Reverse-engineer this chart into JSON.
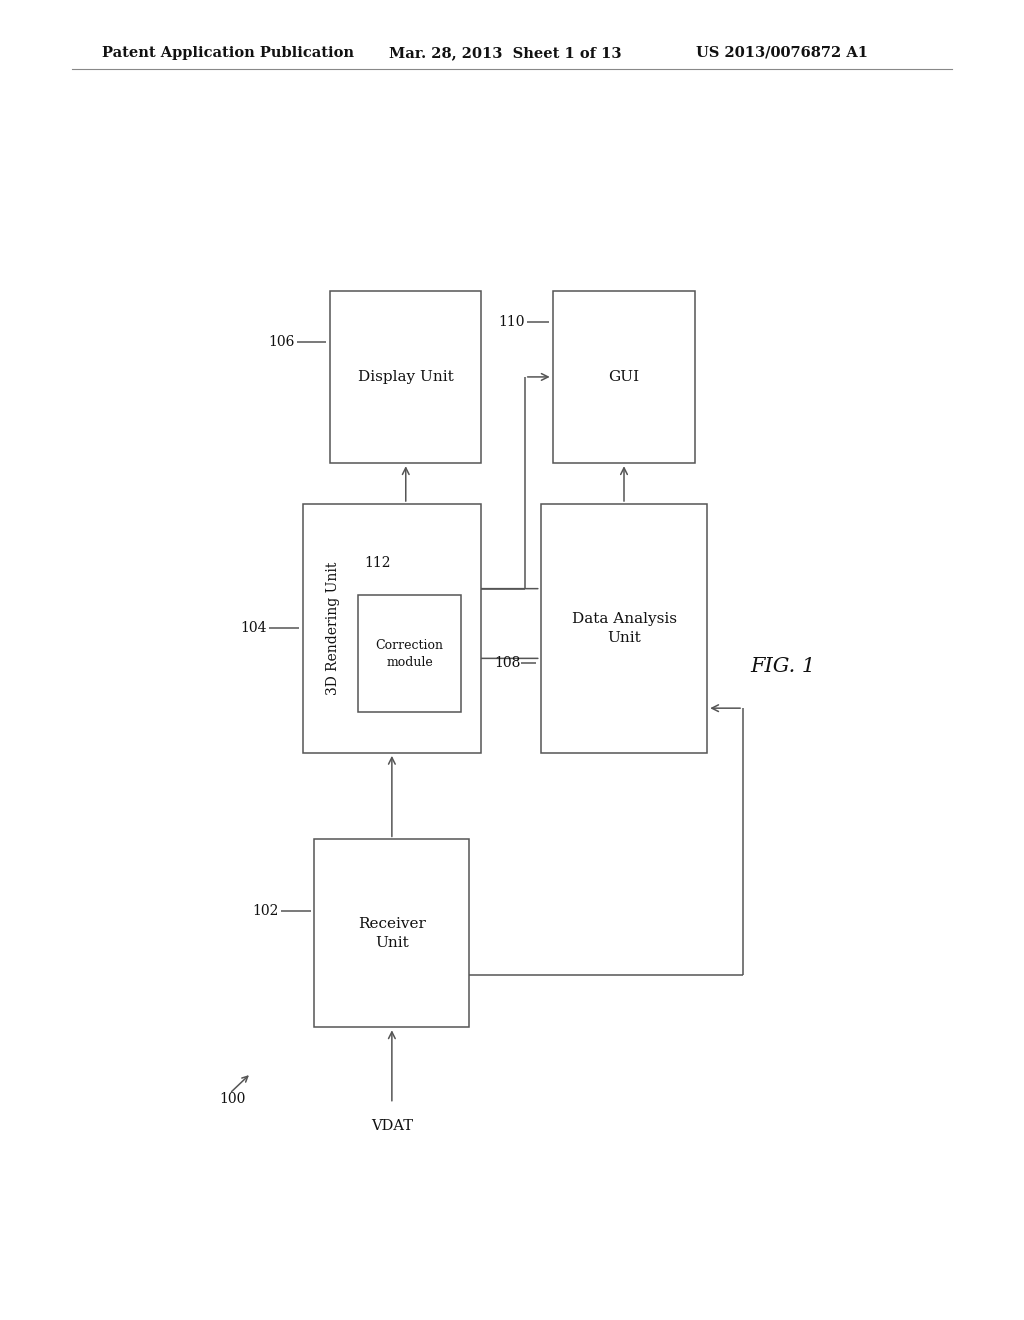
{
  "background_color": "#ffffff",
  "header_left": "Patent Application Publication",
  "header_center": "Mar. 28, 2013  Sheet 1 of 13",
  "header_right": "US 2013/0076872 A1",
  "fig_label": "FIG. 1"
}
